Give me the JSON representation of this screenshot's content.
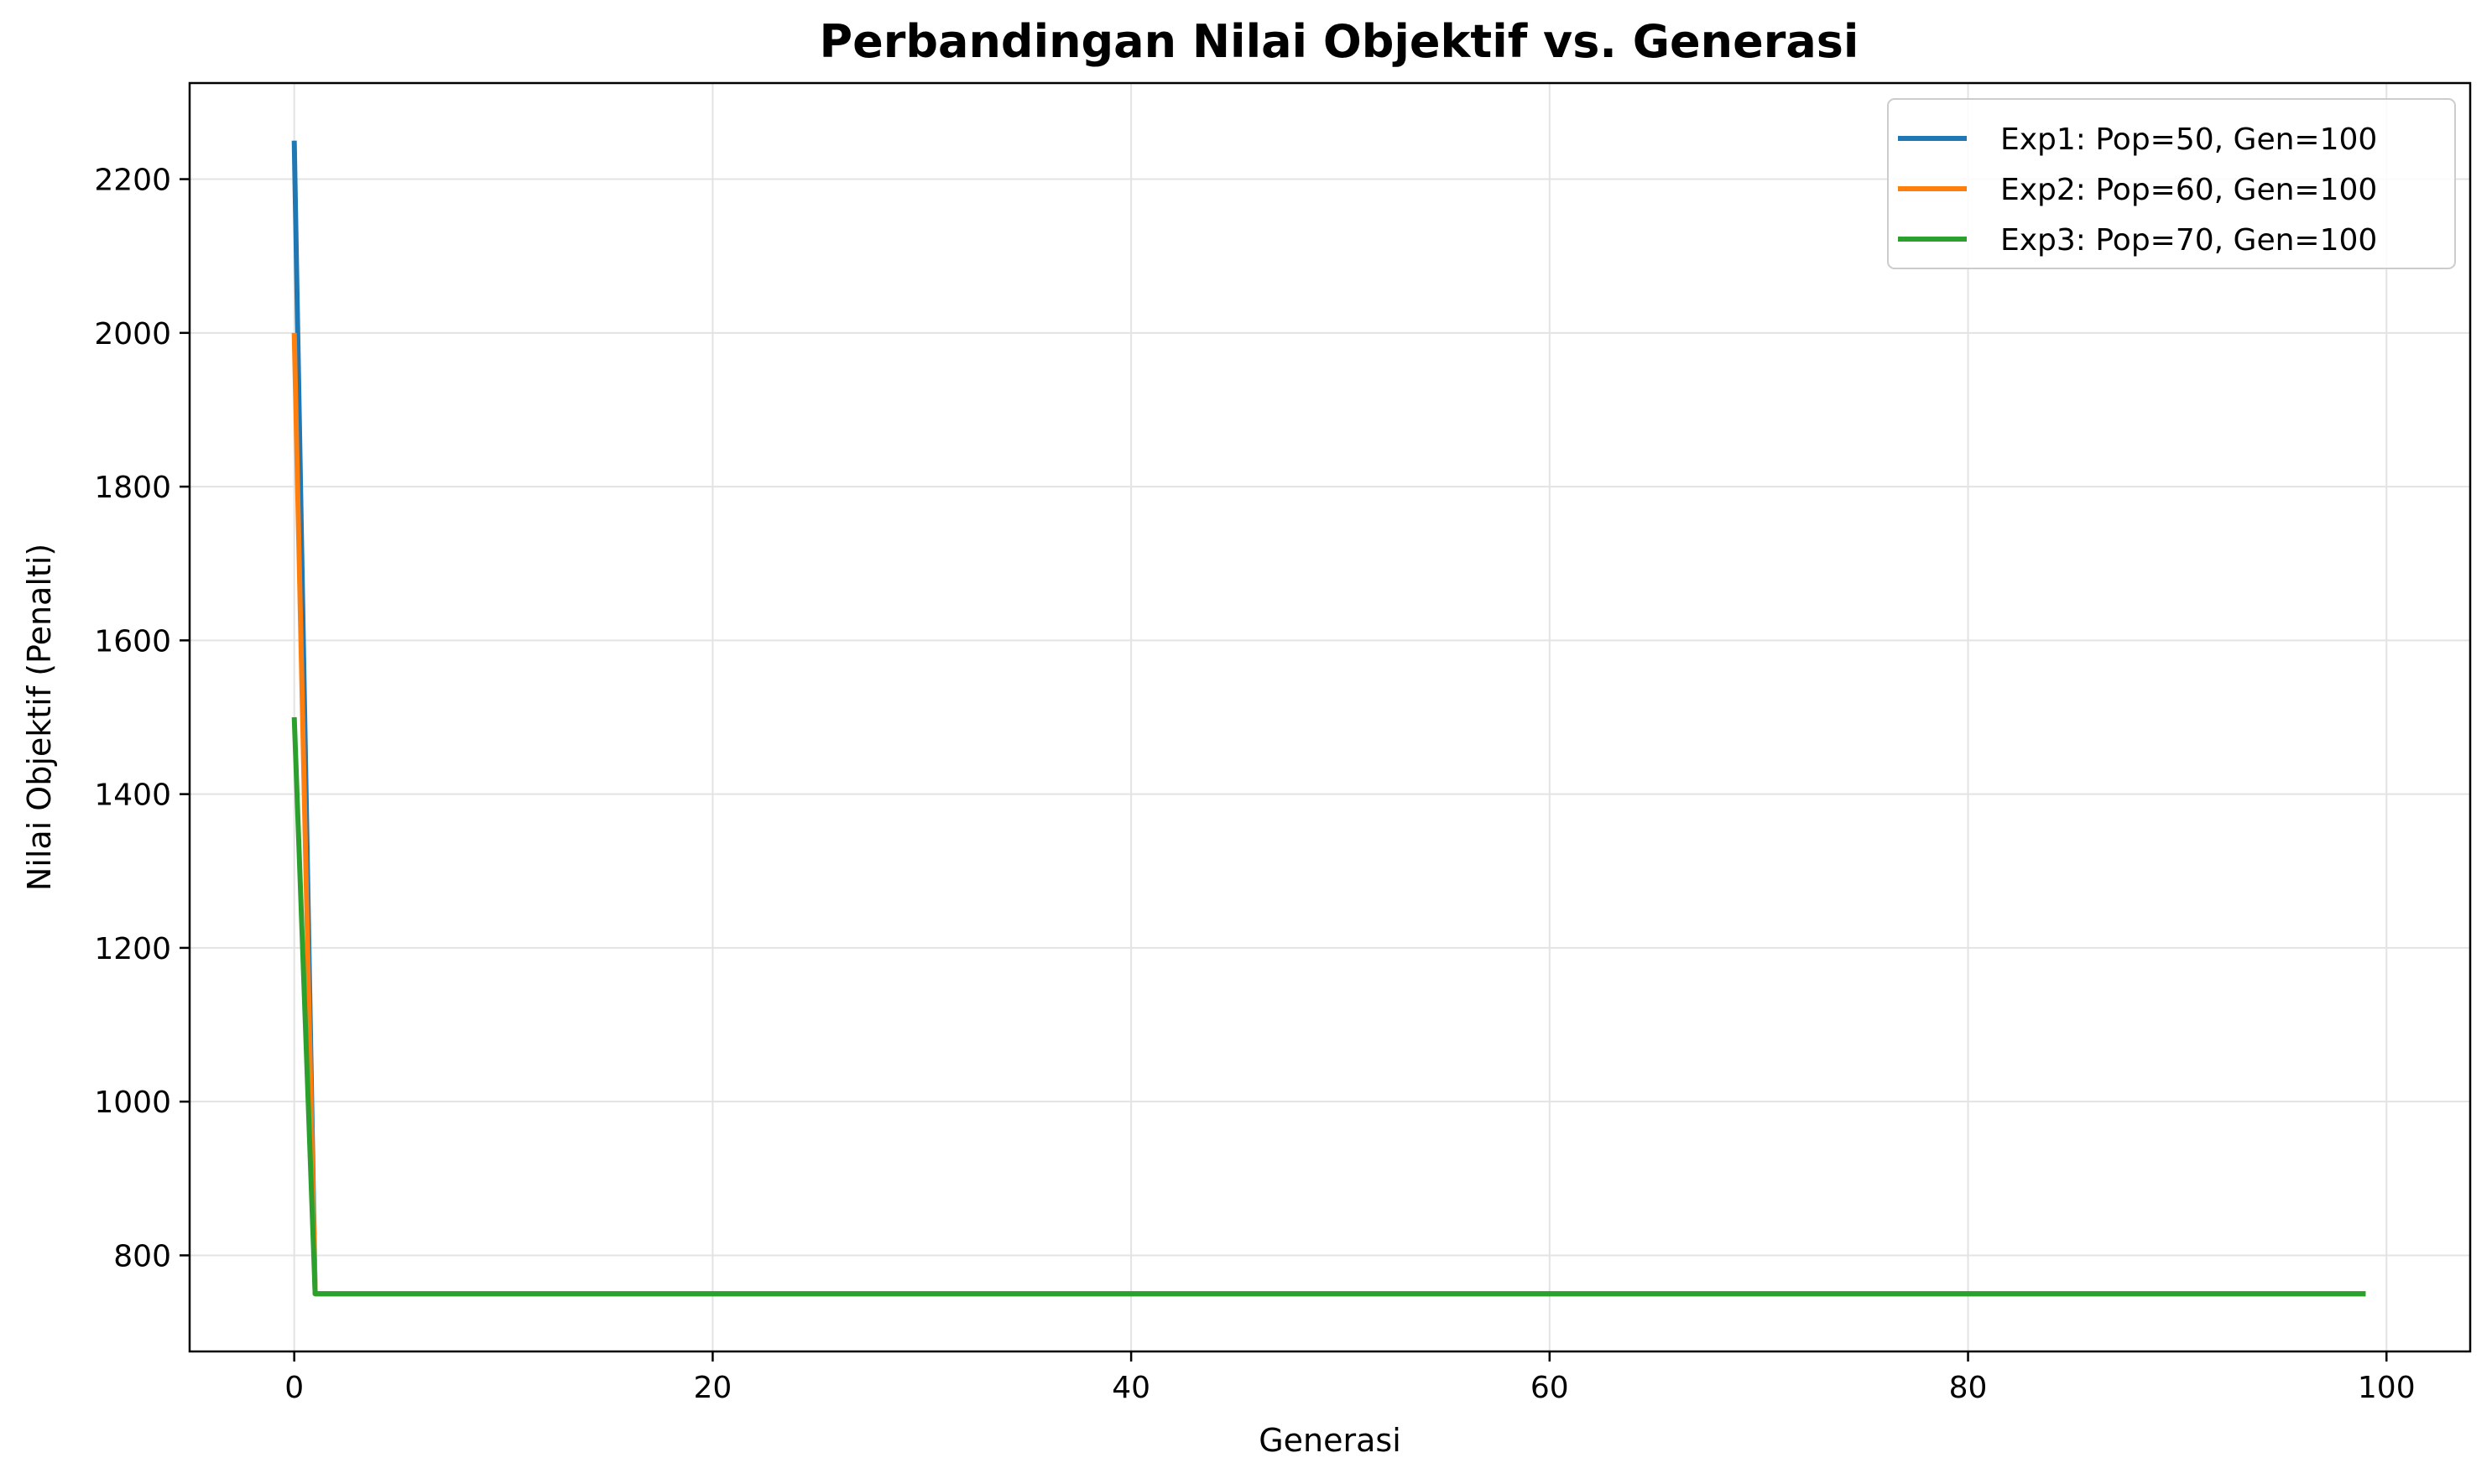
{
  "chart_data": {
    "type": "line",
    "title": "Perbandingan Nilai Objektif vs. Generasi",
    "xlabel": "Generasi",
    "ylabel": "Nilai Objektif (Penalti)",
    "xlim": [
      -5,
      104
    ],
    "ylim": [
      675,
      2325
    ],
    "xticks": [
      0,
      20,
      40,
      60,
      80,
      100
    ],
    "yticks": [
      800,
      1000,
      1200,
      1400,
      1600,
      1800,
      2000,
      2200
    ],
    "grid": true,
    "legend_position": "top-right",
    "series": [
      {
        "name": "Exp1: Pop=50, Gen=100",
        "color": "#1f77b4",
        "start": 2250,
        "value_from_gen1": 750,
        "last_gen": 99
      },
      {
        "name": "Exp2: Pop=60, Gen=100",
        "color": "#ff7f0e",
        "start": 2000,
        "value_from_gen1": 750,
        "last_gen": 99
      },
      {
        "name": "Exp3: Pop=70, Gen=100",
        "color": "#2ca02c",
        "start": 1500,
        "value_from_gen1": 750,
        "last_gen": 99
      }
    ]
  }
}
